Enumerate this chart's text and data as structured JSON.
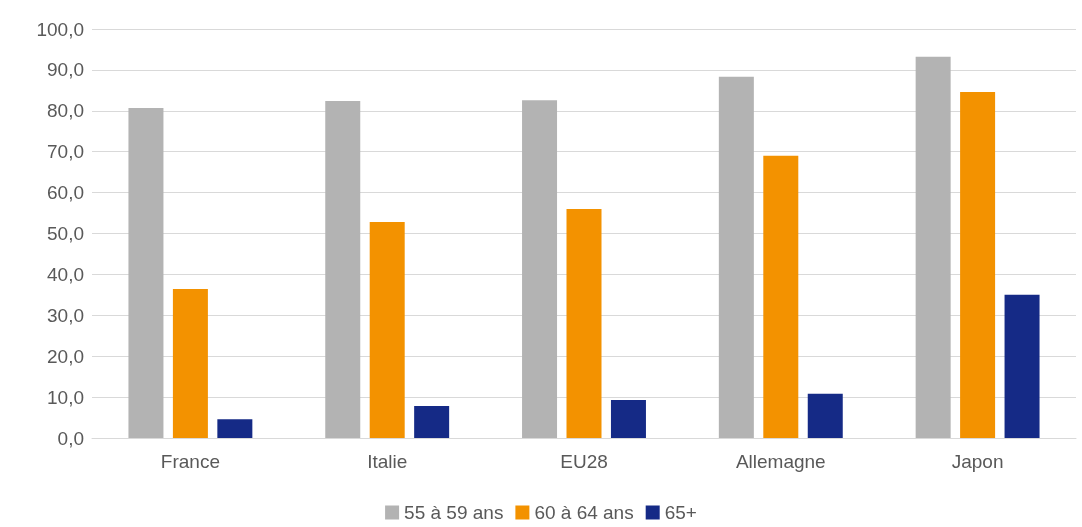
{
  "chart_data": {
    "type": "bar",
    "categories": [
      "France",
      "Italie",
      "EU28",
      "Allemagne",
      "Japon"
    ],
    "series": [
      {
        "name": "55 à 59 ans",
        "color": "#b3b3b3",
        "values": [
          80.7,
          82.4,
          82.6,
          88.3,
          93.2
        ]
      },
      {
        "name": "60 à 64 ans",
        "color": "#f39200",
        "values": [
          36.4,
          52.8,
          56.0,
          69.0,
          84.6
        ]
      },
      {
        "name": "65+",
        "color": "#152a86",
        "values": [
          4.6,
          7.8,
          9.3,
          10.8,
          35.0
        ]
      }
    ],
    "ylim": [
      0,
      100
    ],
    "yticks": [
      {
        "value": 0,
        "label": "0,0"
      },
      {
        "value": 10,
        "label": "10,0"
      },
      {
        "value": 20,
        "label": "20,0"
      },
      {
        "value": 30,
        "label": "30,0"
      },
      {
        "value": 40,
        "label": "40,0"
      },
      {
        "value": 50,
        "label": "50,0"
      },
      {
        "value": 60,
        "label": "60,0"
      },
      {
        "value": 70,
        "label": "70,0"
      },
      {
        "value": 80,
        "label": "80,0"
      },
      {
        "value": 90,
        "label": "90,0"
      },
      {
        "value": 100,
        "label": "100,0"
      }
    ],
    "grid": "y",
    "legend": "bottom"
  }
}
